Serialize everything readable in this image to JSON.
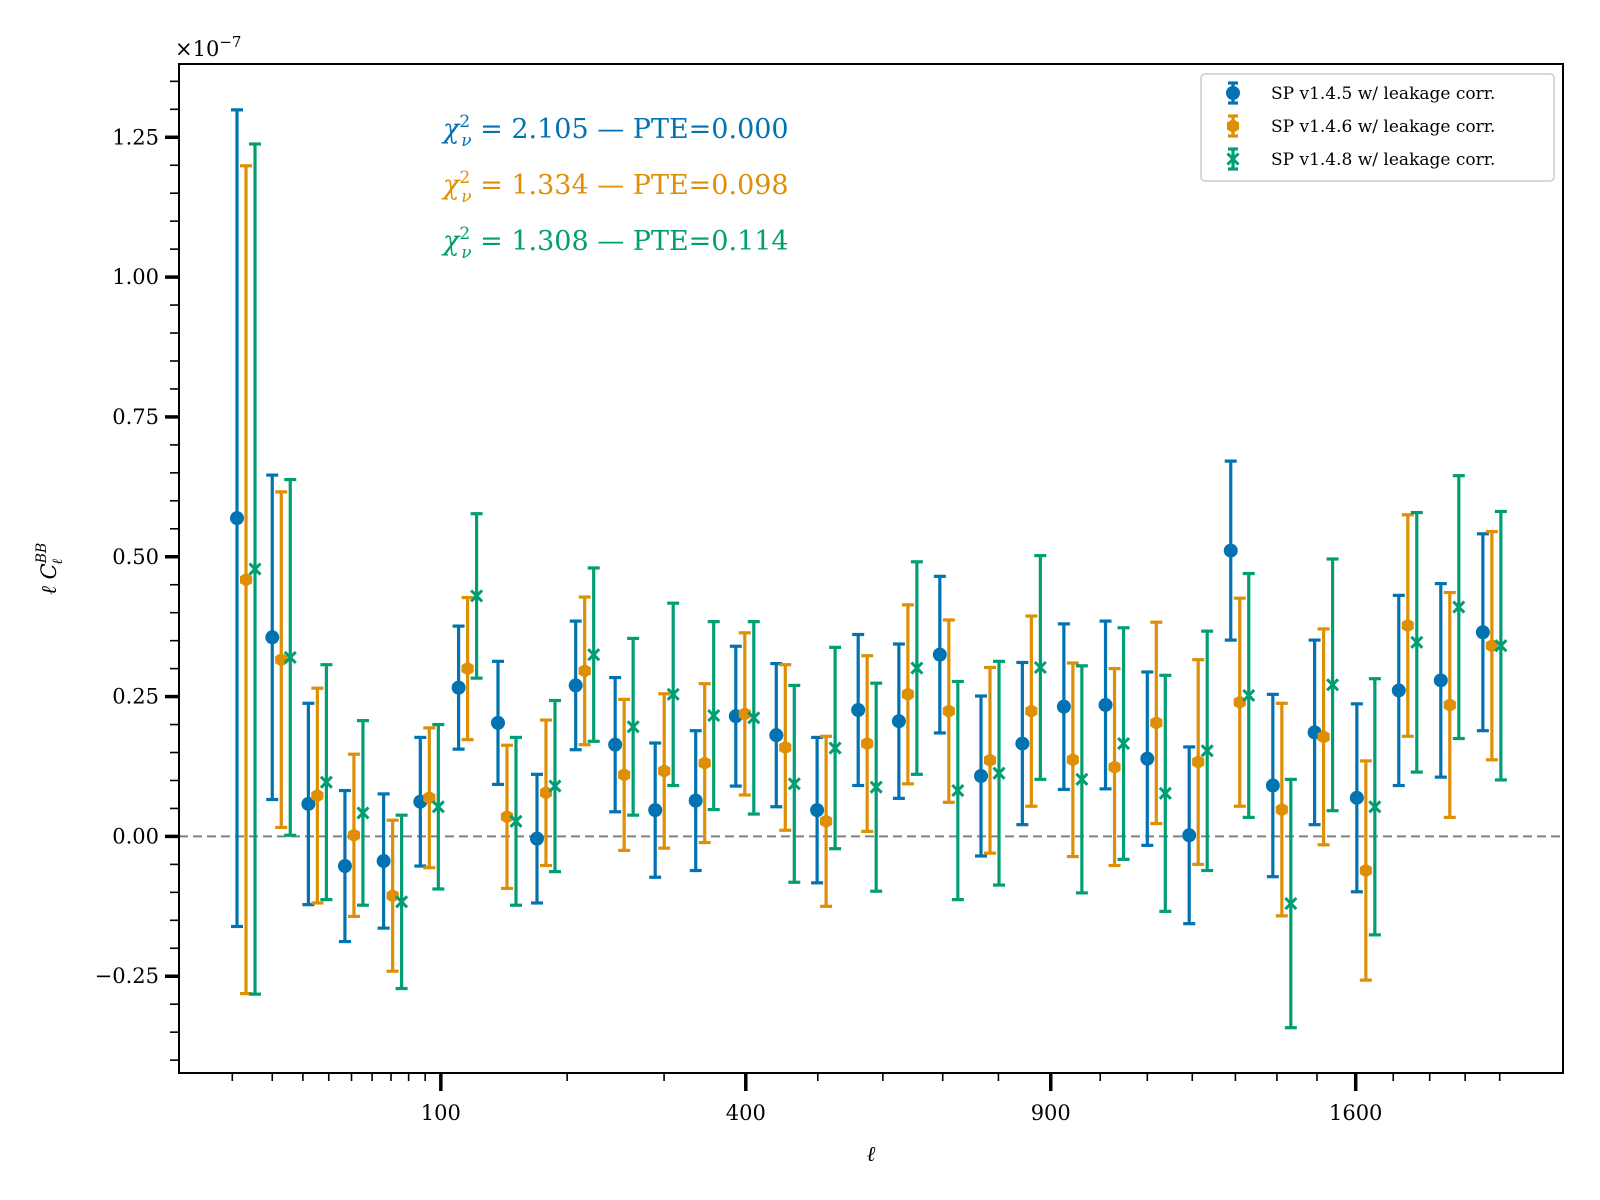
{
  "chart_data": {
    "type": "scatter",
    "subtype": "errorbar",
    "xlabel": "ℓ",
    "ylabel": "ℓ C_ℓ^BB",
    "x_scale": "sqrt",
    "xlim": [
      2,
      2190
    ],
    "ylim": [
      -0.423,
      1.381
    ],
    "y_multiplier": "×10",
    "y_multiplier_exp": "−7",
    "x_ticks": [
      100,
      400,
      900,
      1600
    ],
    "x_tick_labels": [
      "100",
      "400",
      "900",
      "1600"
    ],
    "y_ticks": [
      -0.25,
      0.0,
      0.25,
      0.5,
      0.75,
      1.0,
      1.25
    ],
    "y_tick_labels": [
      "−0.25",
      "0.00",
      "0.25",
      "0.50",
      "0.75",
      "1.00",
      "1.25"
    ],
    "reference_line": {
      "y": 0.0,
      "style": "dashed",
      "color": "#808080"
    },
    "legend_position": "top-right",
    "ell": [
      11,
      20,
      32,
      47,
      66,
      87,
      112,
      141,
      173,
      208,
      247,
      290,
      337,
      387,
      441,
      499,
      561,
      626,
      695,
      768,
      845,
      926,
      1011,
      1100,
      1193,
      1289,
      1390,
      1494,
      1603,
      1715,
      1831,
      1951
    ],
    "series": [
      {
        "name": "SP v1.4.5 w/ leakage corr.",
        "color": "#0173b2",
        "marker": "circle",
        "y": [
          0.569,
          0.356,
          0.058,
          -0.053,
          -0.044,
          0.062,
          0.266,
          0.203,
          -0.004,
          0.27,
          0.164,
          0.047,
          0.064,
          0.215,
          0.181,
          0.047,
          0.226,
          0.206,
          0.325,
          0.108,
          0.166,
          0.232,
          0.235,
          0.139,
          0.002,
          0.511,
          0.091,
          0.186,
          0.069,
          0.261,
          0.279,
          0.365
        ],
        "err": [
          0.73,
          0.29,
          0.18,
          0.135,
          0.12,
          0.115,
          0.11,
          0.11,
          0.115,
          0.115,
          0.12,
          0.12,
          0.125,
          0.125,
          0.128,
          0.13,
          0.135,
          0.138,
          0.14,
          0.143,
          0.145,
          0.148,
          0.15,
          0.155,
          0.158,
          0.16,
          0.163,
          0.165,
          0.168,
          0.17,
          0.173,
          0.176
        ]
      },
      {
        "name": "SP v1.4.6 w/ leakage corr.",
        "color": "#de8f05",
        "marker": "hexagon",
        "y": [
          0.459,
          0.316,
          0.073,
          0.002,
          -0.106,
          0.069,
          0.3,
          0.035,
          0.078,
          0.296,
          0.11,
          0.117,
          0.131,
          0.219,
          0.159,
          0.027,
          0.166,
          0.254,
          0.224,
          0.136,
          0.224,
          0.137,
          0.124,
          0.203,
          0.133,
          0.24,
          0.048,
          0.178,
          -0.061,
          0.377,
          0.235,
          0.341
        ],
        "err": [
          0.74,
          0.3,
          0.192,
          0.145,
          0.135,
          0.125,
          0.127,
          0.128,
          0.13,
          0.132,
          0.135,
          0.138,
          0.142,
          0.145,
          0.148,
          0.152,
          0.157,
          0.16,
          0.163,
          0.166,
          0.17,
          0.173,
          0.176,
          0.18,
          0.183,
          0.186,
          0.19,
          0.193,
          0.196,
          0.198,
          0.201,
          0.204
        ]
      },
      {
        "name": "SP v1.4.8 w/ leakage corr.",
        "color": "#029e73",
        "marker": "x",
        "y": [
          0.478,
          0.32,
          0.097,
          0.042,
          -0.117,
          0.053,
          0.43,
          0.027,
          0.09,
          0.325,
          0.196,
          0.254,
          0.216,
          0.212,
          0.094,
          0.158,
          0.088,
          0.301,
          0.082,
          0.113,
          0.302,
          0.102,
          0.166,
          0.077,
          0.153,
          0.252,
          -0.12,
          0.271,
          0.053,
          0.347,
          0.41,
          0.341
        ],
        "err": [
          0.76,
          0.318,
          0.21,
          0.165,
          0.155,
          0.147,
          0.147,
          0.15,
          0.153,
          0.155,
          0.158,
          0.163,
          0.168,
          0.172,
          0.176,
          0.18,
          0.186,
          0.19,
          0.195,
          0.2,
          0.2,
          0.203,
          0.207,
          0.211,
          0.214,
          0.218,
          0.222,
          0.225,
          0.229,
          0.232,
          0.235,
          0.24
        ]
      }
    ],
    "annotations": [
      {
        "prefix": "χ",
        "sup": "2",
        "sub": "ν",
        "text": " = 2.105 — PTE=0.000",
        "color": "#0173b2"
      },
      {
        "prefix": "χ",
        "sup": "2",
        "sub": "ν",
        "text": " = 1.334 — PTE=0.098",
        "color": "#de8f05"
      },
      {
        "prefix": "χ",
        "sup": "2",
        "sub": "ν",
        "text": " = 1.308 — PTE=0.114",
        "color": "#029e73"
      }
    ]
  }
}
